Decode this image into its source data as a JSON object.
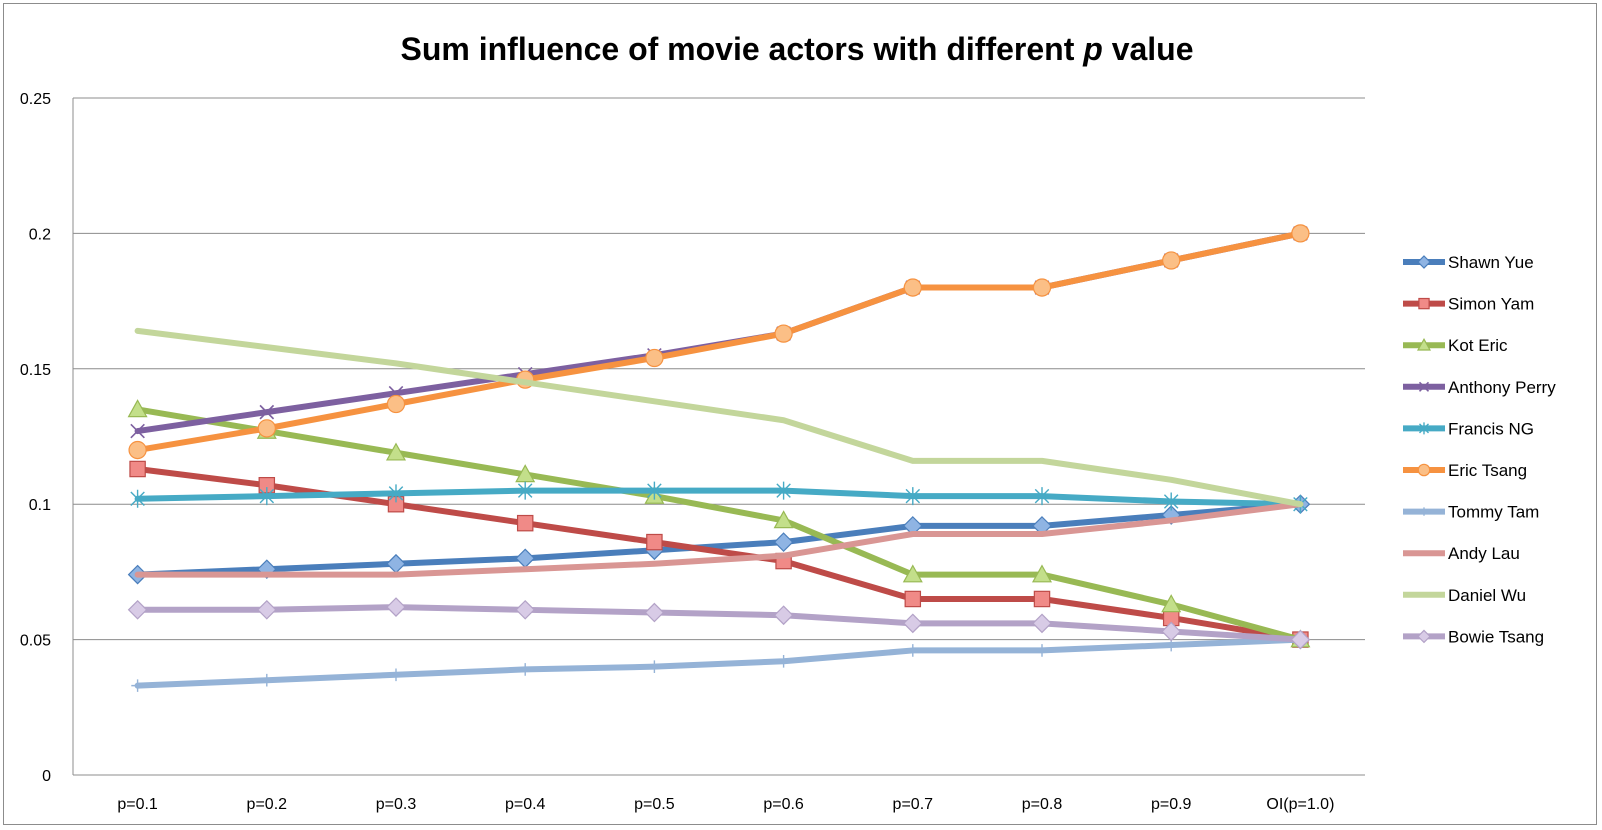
{
  "chart_data": {
    "type": "line",
    "title": "Sum influence of movie actors with different ",
    "title_italic": "p",
    "title_suffix": " value",
    "xlabel": "",
    "ylabel": "",
    "categories": [
      "p=0.1",
      "p=0.2",
      "p=0.3",
      "p=0.4",
      "p=0.5",
      "p=0.6",
      "p=0.7",
      "p=0.8",
      "p=0.9",
      "OI(p=1.0)"
    ],
    "ylim": [
      0,
      0.25
    ],
    "yticks": [
      "0",
      "0.05",
      "0.1",
      "0.15",
      "0.2",
      "0.25"
    ],
    "grid": true,
    "legend_position": "right",
    "series": [
      {
        "name": "Shawn Yue",
        "color": "#4a7ebb",
        "light": "#8fb4e3",
        "marker": "diamond",
        "values": [
          0.074,
          0.076,
          0.078,
          0.08,
          0.083,
          0.086,
          0.092,
          0.092,
          0.096,
          0.1
        ]
      },
      {
        "name": "Simon Yam",
        "color": "#be4b48",
        "light": "#f08a87",
        "marker": "square",
        "values": [
          0.113,
          0.107,
          0.1,
          0.093,
          0.086,
          0.079,
          0.065,
          0.065,
          0.058,
          0.05
        ]
      },
      {
        "name": "Kot Eric",
        "color": "#98b954",
        "light": "#c3df8a",
        "marker": "triangle",
        "values": [
          0.135,
          0.127,
          0.119,
          0.111,
          0.103,
          0.094,
          0.074,
          0.074,
          0.063,
          0.05
        ]
      },
      {
        "name": "Anthony Perry",
        "color": "#7d60a0",
        "light": "#7d60a0",
        "marker": "x",
        "values": [
          0.127,
          0.134,
          0.141,
          0.148,
          0.155,
          0.163,
          0.18,
          0.18,
          0.19,
          0.2
        ]
      },
      {
        "name": "Francis NG",
        "color": "#46aac5",
        "light": "#46aac5",
        "marker": "star",
        "values": [
          0.102,
          0.103,
          0.104,
          0.105,
          0.105,
          0.105,
          0.103,
          0.103,
          0.101,
          0.1
        ]
      },
      {
        "name": "Eric Tsang",
        "color": "#f69240",
        "light": "#fbbf86",
        "marker": "circle",
        "values": [
          0.12,
          0.128,
          0.137,
          0.146,
          0.154,
          0.163,
          0.18,
          0.18,
          0.19,
          0.2
        ]
      },
      {
        "name": "Tommy Tam",
        "color": "#95b3d7",
        "light": "#95b3d7",
        "marker": "plus",
        "values": [
          0.033,
          0.035,
          0.037,
          0.039,
          0.04,
          0.042,
          0.046,
          0.046,
          0.048,
          0.05
        ]
      },
      {
        "name": "Andy Lau",
        "color": "#d99694",
        "light": "#d99694",
        "marker": "none",
        "values": [
          0.074,
          0.074,
          0.074,
          0.076,
          0.078,
          0.081,
          0.089,
          0.089,
          0.094,
          0.1
        ]
      },
      {
        "name": "Daniel Wu",
        "color": "#c3d69b",
        "light": "#c3d69b",
        "marker": "none",
        "values": [
          0.164,
          0.158,
          0.152,
          0.145,
          0.138,
          0.131,
          0.116,
          0.116,
          0.109,
          0.1
        ]
      },
      {
        "name": "Bowie Tsang",
        "color": "#b3a2c7",
        "light": "#d8cbe6",
        "marker": "diamond",
        "values": [
          0.061,
          0.061,
          0.062,
          0.061,
          0.06,
          0.059,
          0.056,
          0.056,
          0.053,
          0.05
        ]
      }
    ]
  }
}
